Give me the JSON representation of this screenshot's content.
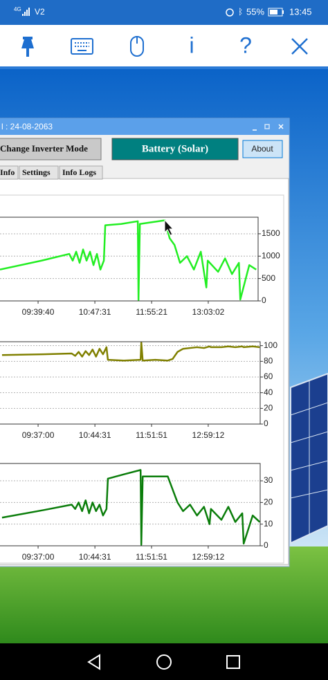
{
  "status_bar": {
    "network": "4G",
    "carrier": "V2",
    "battery": "55%",
    "time": "13:45"
  },
  "toolbar": {
    "info": "i",
    "help": "?"
  },
  "window": {
    "title": "l : 24-08-2063",
    "buttons": [
      "Change Inverter Mode",
      "Battery (Solar)",
      "About"
    ],
    "tabs": [
      "Info",
      "Settings",
      "Info Logs"
    ]
  },
  "chart_data": [
    {
      "type": "line",
      "x": [
        "08:54:09",
        "09:43:48",
        "10:16:54",
        "10:21:03",
        "10:25:11",
        "10:29:19",
        "10:33:27",
        "10:37:36",
        "10:41:44",
        "10:45:52",
        "10:50:00",
        "10:54:09",
        "10:58:17",
        "10:59:56",
        "11:18:58",
        "11:38:50",
        "11:39:40",
        "11:41:19",
        "11:56:13",
        "12:11:07",
        "12:16:54",
        "12:22:42",
        "12:29:19",
        "12:37:35",
        "12:45:52",
        "12:54:08",
        "13:00:46",
        "13:02:25",
        "13:14:50",
        "13:23:06",
        "13:31:23",
        "13:39:39",
        "13:41:19",
        "13:52:04",
        "14:00:20"
      ],
      "series": [
        {
          "color": "#22ee22",
          "values": [
            700,
            900,
            1050,
            900,
            1100,
            850,
            1150,
            900,
            1100,
            800,
            1050,
            700,
            900,
            1690,
            1720,
            1780,
            20,
            1720,
            1760,
            1800,
            1400,
            1250,
            850,
            1000,
            700,
            1100,
            300,
            900,
            650,
            950,
            600,
            850,
            30,
            800,
            700
          ]
        }
      ],
      "xlim": [
        "08:54:09",
        "14:02:37"
      ],
      "xticks": [
        "09:39:40",
        "10:47:31",
        "11:55:21",
        "13:03:02"
      ],
      "ylim": [
        0,
        1870
      ],
      "yticks": [
        0,
        500,
        1000,
        1500
      ],
      "grid": true
    },
    {
      "type": "line",
      "x": [
        "08:54:09",
        "09:43:48",
        "10:16:54",
        "10:21:03",
        "10:25:11",
        "10:29:19",
        "10:33:27",
        "10:37:36",
        "10:41:44",
        "10:45:52",
        "10:50:00",
        "10:54:09",
        "10:58:17",
        "10:59:56",
        "11:18:58",
        "11:38:50",
        "11:39:40",
        "11:41:19",
        "11:56:13",
        "12:11:07",
        "12:16:54",
        "12:22:42",
        "12:29:19",
        "12:37:35",
        "12:45:52",
        "12:54:08",
        "13:00:46",
        "13:02:25",
        "13:14:50",
        "13:23:06",
        "13:31:23",
        "13:39:39",
        "13:41:19",
        "13:52:04",
        "14:00:20"
      ],
      "series": [
        {
          "color": "#808000",
          "values": [
            88,
            89,
            90,
            87,
            92,
            86,
            93,
            88,
            95,
            86,
            96,
            89,
            98,
            82,
            81,
            82,
            104,
            81,
            82,
            81,
            83,
            92,
            96,
            97,
            98,
            97,
            99,
            98,
            98,
            99,
            98,
            99,
            98,
            99,
            98
          ]
        }
      ],
      "xlim": [
        "08:51:43",
        "14:00:57"
      ],
      "xticks": [
        "09:37:00",
        "10:44:31",
        "11:51:51",
        "12:59:12"
      ],
      "ylim": [
        0,
        105
      ],
      "yticks": [
        0,
        20,
        40,
        60,
        80,
        100
      ],
      "grid": true
    },
    {
      "type": "line",
      "x": [
        "08:54:09",
        "09:43:48",
        "10:16:54",
        "10:21:03",
        "10:25:11",
        "10:29:19",
        "10:33:27",
        "10:37:36",
        "10:41:44",
        "10:45:52",
        "10:50:00",
        "10:54:09",
        "10:58:17",
        "10:59:56",
        "11:18:58",
        "11:38:50",
        "11:39:40",
        "11:41:19",
        "11:56:13",
        "12:11:07",
        "12:16:54",
        "12:22:42",
        "12:29:19",
        "12:37:35",
        "12:45:52",
        "12:54:08",
        "13:00:46",
        "13:02:25",
        "13:14:50",
        "13:23:06",
        "13:31:23",
        "13:39:39",
        "13:41:19",
        "13:52:04",
        "14:00:20"
      ],
      "series": [
        {
          "color": "#0a7d0a",
          "values": [
            13,
            16.5,
            19,
            17,
            20,
            16,
            21,
            15,
            20,
            16,
            19,
            14,
            17,
            31,
            33,
            35,
            0.5,
            32,
            32,
            32,
            26,
            20,
            16,
            19,
            14,
            18,
            10,
            17,
            12,
            18,
            11,
            15,
            1,
            14,
            11
          ]
        }
      ],
      "xlim": [
        "08:51:43",
        "14:00:57"
      ],
      "xticks": [
        "09:37:00",
        "10:44:31",
        "11:51:51",
        "12:59:12"
      ],
      "ylim": [
        0,
        38
      ],
      "yticks": [
        0,
        10,
        20,
        30
      ],
      "grid": true
    }
  ]
}
